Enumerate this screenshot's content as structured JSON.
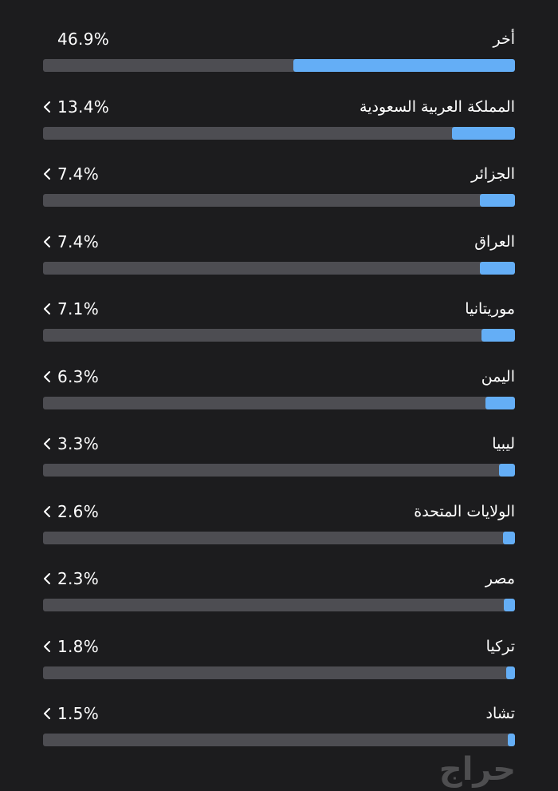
{
  "colors": {
    "background": "#1c1c1e",
    "track": "#4d4d52",
    "fill": "#64aef6",
    "text": "#ffffff"
  },
  "rows": [
    {
      "country": "أخر",
      "percent_label": "46.9%",
      "percent": 46.9,
      "has_chevron": false
    },
    {
      "country": "المملكة العربية السعودية",
      "percent_label": "13.4%",
      "percent": 13.4,
      "has_chevron": true
    },
    {
      "country": "الجزائر",
      "percent_label": "7.4%",
      "percent": 7.4,
      "has_chevron": true
    },
    {
      "country": "العراق",
      "percent_label": "7.4%",
      "percent": 7.4,
      "has_chevron": true
    },
    {
      "country": "موريتانيا",
      "percent_label": "7.1%",
      "percent": 7.1,
      "has_chevron": true
    },
    {
      "country": "اليمن",
      "percent_label": "6.3%",
      "percent": 6.3,
      "has_chevron": true
    },
    {
      "country": "ليبيا",
      "percent_label": "3.3%",
      "percent": 3.3,
      "has_chevron": true
    },
    {
      "country": "الولايات المتحدة",
      "percent_label": "2.6%",
      "percent": 2.6,
      "has_chevron": true
    },
    {
      "country": "مصر",
      "percent_label": "2.3%",
      "percent": 2.3,
      "has_chevron": true
    },
    {
      "country": "تركيا",
      "percent_label": "1.8%",
      "percent": 1.8,
      "has_chevron": true
    },
    {
      "country": "تشاد",
      "percent_label": "1.5%",
      "percent": 1.5,
      "has_chevron": true
    }
  ],
  "watermark": {
    "text": "حراج",
    "icon": "haraj-logo"
  }
}
